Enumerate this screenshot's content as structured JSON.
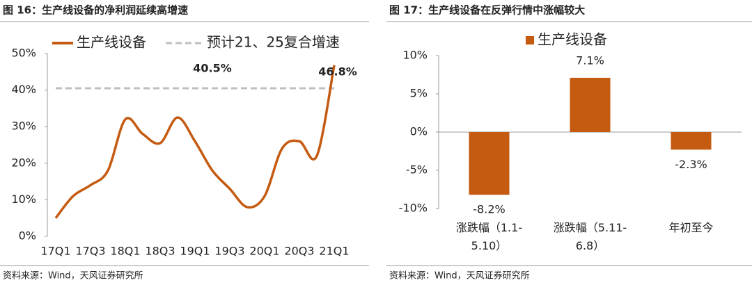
{
  "chart_data": [
    {
      "type": "line",
      "title": "图 16：生产线设备的净利润延续高增速",
      "source": "资料来源：Wind，天风证券研究所",
      "categories": [
        "17Q1",
        null,
        "17Q3",
        null,
        "18Q1",
        null,
        "18Q3",
        null,
        "19Q1",
        null,
        "19Q3",
        null,
        "20Q1",
        null,
        "20Q3",
        null,
        "21Q1"
      ],
      "series": [
        {
          "name": "生产线设备",
          "color": "#c55a11",
          "values": [
            5,
            11,
            14,
            18,
            32,
            28,
            25.5,
            32.5,
            26,
            18,
            13,
            8,
            11,
            24,
            26,
            22,
            46.8
          ],
          "value_labels": [
            null,
            null,
            null,
            null,
            null,
            null,
            null,
            null,
            null,
            null,
            null,
            null,
            null,
            null,
            null,
            null,
            "46.8%"
          ]
        }
      ],
      "reference": {
        "name": "预计21、25复合增速",
        "value": 40.5,
        "label": "40.5%",
        "color": "#bfbfbf"
      },
      "ylim": [
        0,
        50
      ],
      "yticks": [
        {
          "value": 0,
          "label": "0%"
        },
        {
          "value": 10,
          "label": "10%"
        },
        {
          "value": 20,
          "label": "20%"
        },
        {
          "value": 30,
          "label": "30%"
        },
        {
          "value": 40,
          "label": "40%"
        },
        {
          "value": 50,
          "label": "50%"
        }
      ],
      "legend": "top",
      "grid": false
    },
    {
      "type": "bar",
      "title": "图 17：生产线设备在反弹行情中涨幅较大",
      "source": "资料来源：Wind，天风证券研究所",
      "categories": [
        "涨跌幅（1.1-5.10）",
        "涨跌幅（5.11-6.8）",
        "年初至今"
      ],
      "series": [
        {
          "name": "生产线设备",
          "color": "#c55a11",
          "values": [
            -8.2,
            7.1,
            -2.3
          ],
          "value_labels": [
            "-8.2%",
            "7.1%",
            "-2.3%"
          ]
        }
      ],
      "ylim": [
        -10,
        10
      ],
      "yticks": [
        {
          "value": -10,
          "label": "-10%"
        },
        {
          "value": -5,
          "label": "-5%"
        },
        {
          "value": 0,
          "label": "0%"
        },
        {
          "value": 5,
          "label": "5%"
        },
        {
          "value": 10,
          "label": "10%"
        }
      ],
      "legend": "top",
      "grid": false
    }
  ]
}
